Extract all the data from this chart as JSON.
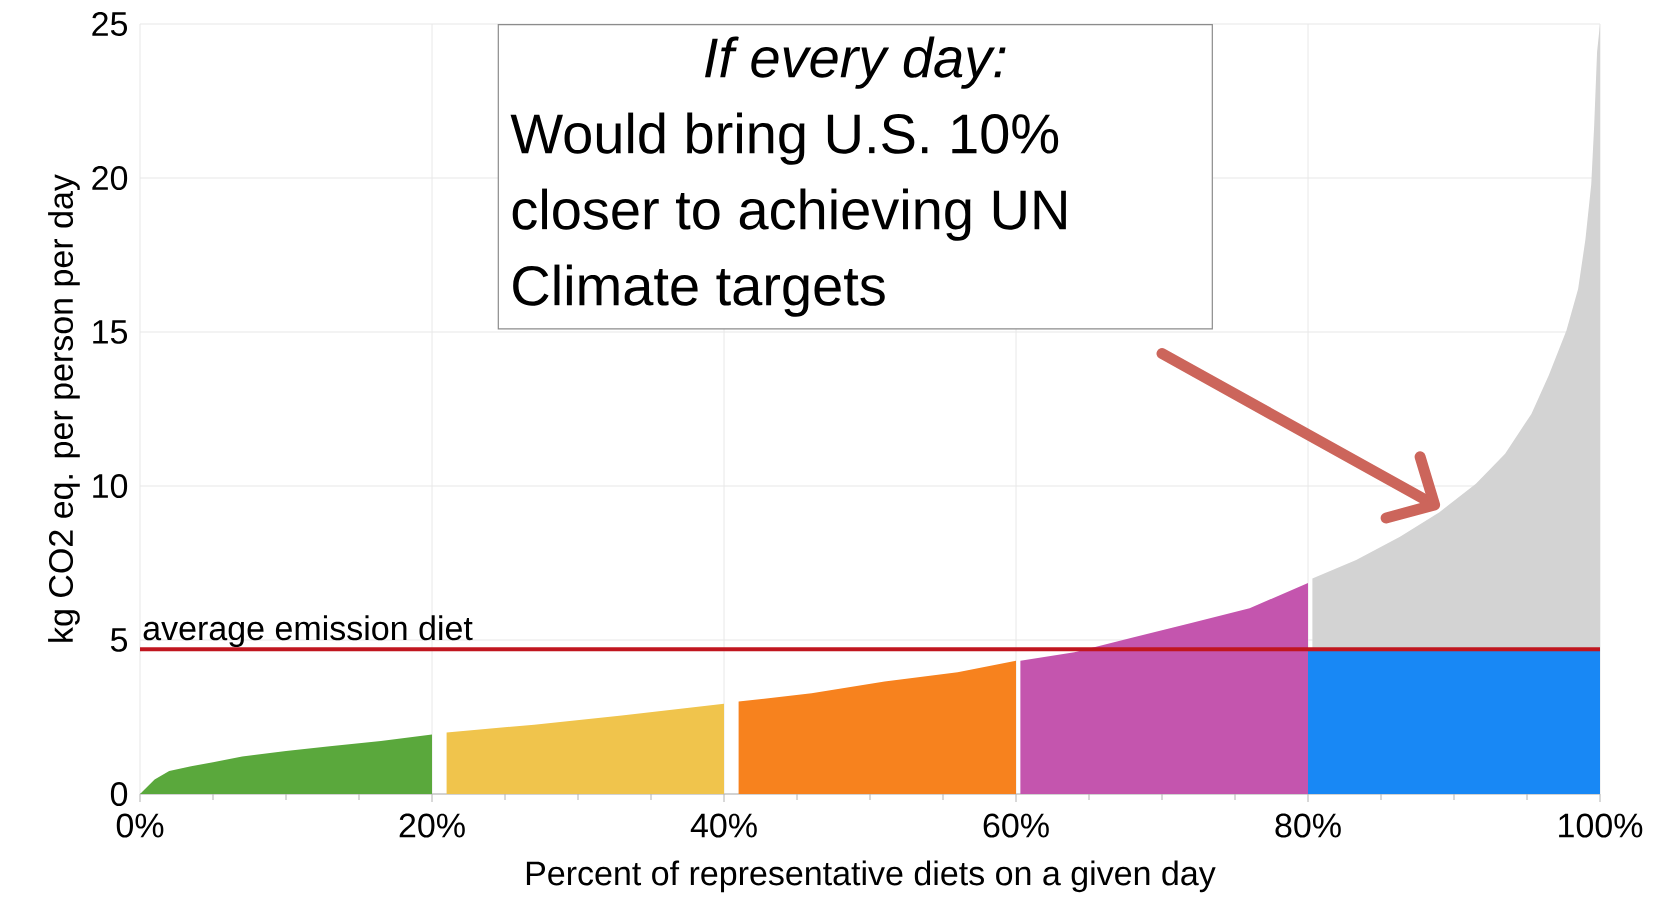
{
  "chart_data": {
    "type": "area",
    "xlabel": "Percent of representative diets on a given day",
    "ylabel": "kg CO2 eq. per person per day",
    "xlim": [
      0,
      100
    ],
    "ylim": [
      0,
      25
    ],
    "xticks": [
      {
        "value": 0,
        "label": "0%"
      },
      {
        "value": 5,
        "label": null
      },
      {
        "value": 10,
        "label": null
      },
      {
        "value": 15,
        "label": null
      },
      {
        "value": 20,
        "label": "20%"
      },
      {
        "value": 25,
        "label": null
      },
      {
        "value": 30,
        "label": null
      },
      {
        "value": 35,
        "label": null
      },
      {
        "value": 40,
        "label": "40%"
      },
      {
        "value": 45,
        "label": null
      },
      {
        "value": 50,
        "label": null
      },
      {
        "value": 55,
        "label": null
      },
      {
        "value": 60,
        "label": "60%"
      },
      {
        "value": 65,
        "label": null
      },
      {
        "value": 70,
        "label": null
      },
      {
        "value": 75,
        "label": null
      },
      {
        "value": 80,
        "label": "80%"
      },
      {
        "value": 85,
        "label": null
      },
      {
        "value": 90,
        "label": null
      },
      {
        "value": 95,
        "label": null
      },
      {
        "value": 100,
        "label": "100%"
      }
    ],
    "yticks": [
      0,
      5,
      10,
      15,
      20,
      25
    ],
    "grid": true,
    "series": [
      {
        "color": "#5aa83c",
        "x": [
          0,
          1,
          2,
          3.5,
          5,
          7,
          10,
          13,
          16.5,
          20
        ],
        "values": [
          0,
          0.47,
          0.75,
          0.9,
          1.03,
          1.22,
          1.4,
          1.55,
          1.72,
          1.93
        ]
      },
      {
        "color": "#f0c44c",
        "x": [
          21,
          27,
          33,
          40
        ],
        "values": [
          2.0,
          2.25,
          2.55,
          2.93
        ]
      },
      {
        "color": "#f7821e",
        "x": [
          41,
          46,
          51,
          56,
          60
        ],
        "values": [
          3.0,
          3.27,
          3.65,
          3.95,
          4.33
        ]
      },
      {
        "color": "#c455ae",
        "x": [
          60.3,
          64,
          68,
          72,
          76,
          80
        ],
        "values": [
          4.33,
          4.6,
          5.08,
          5.55,
          6.03,
          6.85
        ]
      },
      {
        "color": "#d3d3d3",
        "x": [
          80.3,
          83.3,
          86.3,
          89,
          91.5,
          93.5,
          95.3,
          96.5,
          97.7,
          98.5,
          99,
          99.4,
          99.6,
          99.8,
          100
        ],
        "values": [
          7.0,
          7.6,
          8.35,
          9.15,
          10.07,
          11.05,
          12.34,
          13.6,
          15.05,
          16.4,
          18.0,
          19.8,
          21.7,
          24.1,
          25
        ]
      },
      {
        "color": "#1888f5",
        "x": [
          80,
          100
        ],
        "values": [
          4.7,
          4.7
        ]
      }
    ],
    "ref_lines": [
      {
        "axis": "y",
        "value": 4.7,
        "label": "average emission diet",
        "color": "#c0161f"
      }
    ],
    "annotations": [
      "If every day:",
      "Would bring U.S. 10% closer to achieving UN Climate targets"
    ]
  }
}
